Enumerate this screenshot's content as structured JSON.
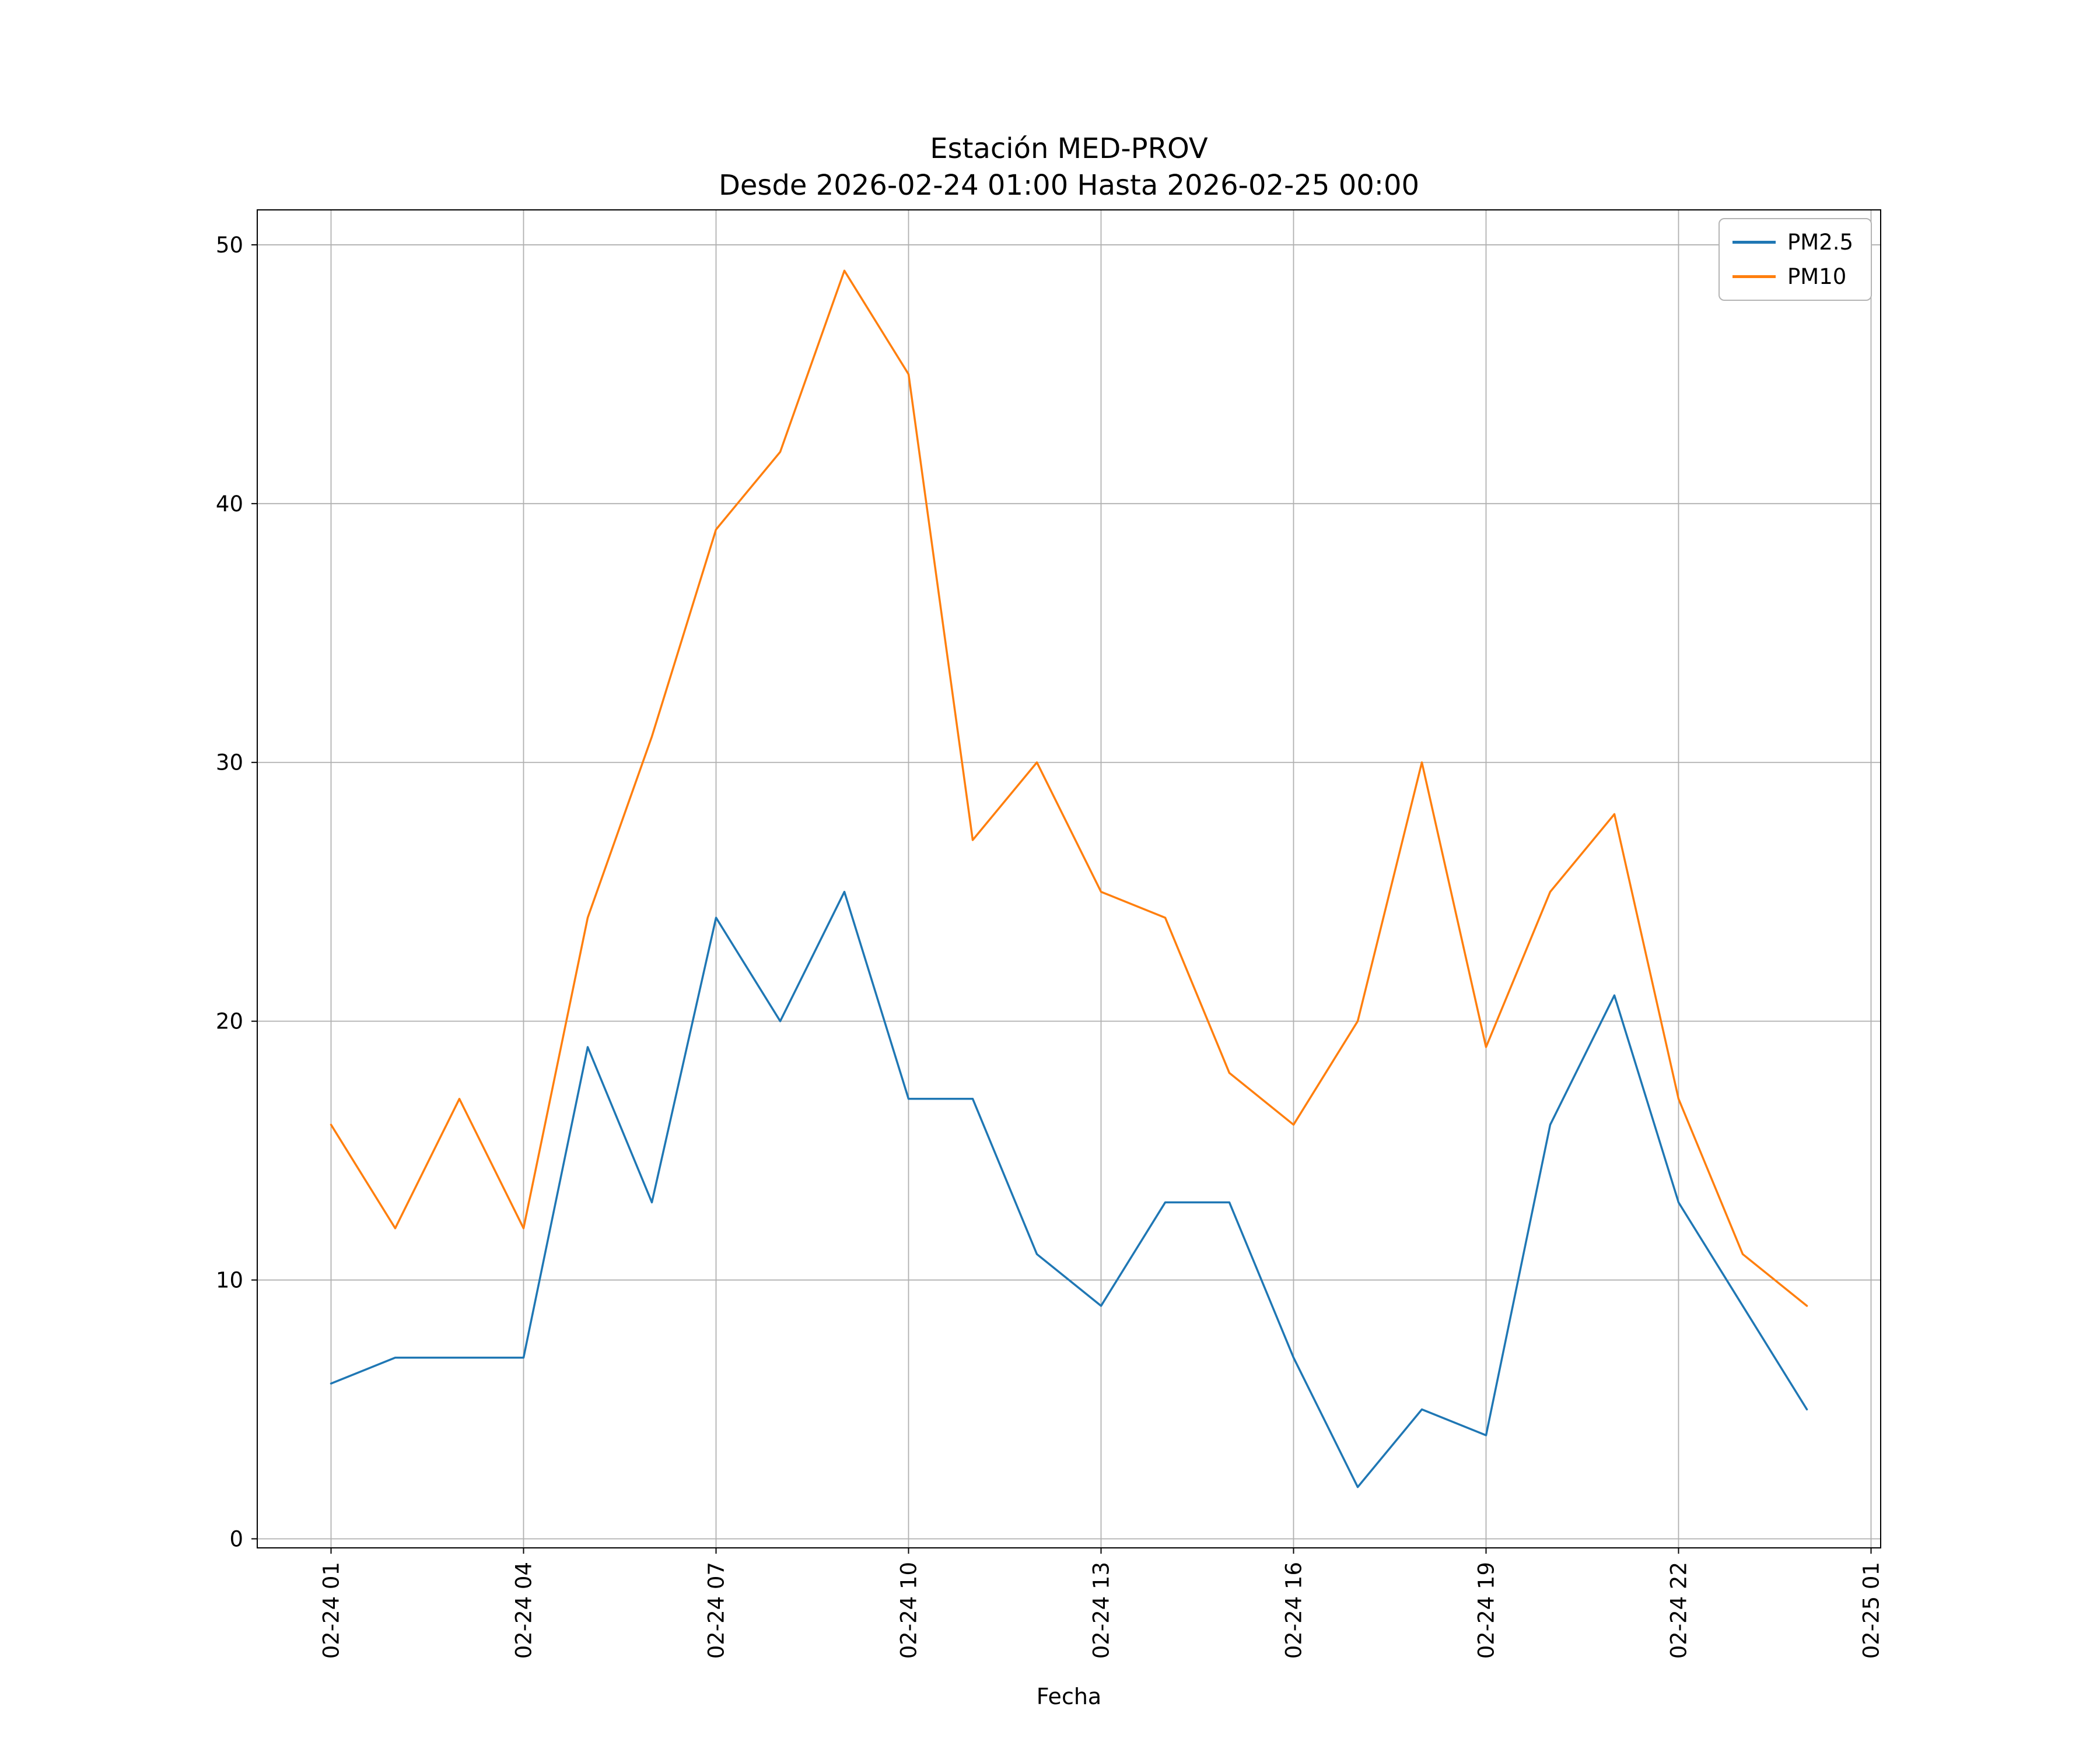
{
  "figure": {
    "background": "#ffffff"
  },
  "chart_data": {
    "type": "line",
    "title": "Estación MED-PROV",
    "subtitle": "Desde 2026-02-24 01:00 Hasta 2026-02-25 00:00",
    "xlabel": "Fecha",
    "ylabel": "",
    "grid": true,
    "legend_position": "upper right",
    "grid_color": "#b0b0b0",
    "axis_color": "#000000",
    "xlim": [
      -0.15,
      25.15
    ],
    "ylim": [
      -0.35,
      51.35
    ],
    "x_hours": [
      1,
      2,
      3,
      4,
      5,
      6,
      7,
      8,
      9,
      10,
      11,
      12,
      13,
      14,
      15,
      16,
      17,
      18,
      19,
      20,
      21,
      22,
      23,
      24
    ],
    "series": [
      {
        "name": "PM2.5",
        "color": "#1f77b4",
        "values": [
          6,
          7,
          7,
          7,
          19,
          13,
          24,
          20,
          25,
          17,
          17,
          11,
          9,
          13,
          13,
          7,
          2,
          5,
          4,
          16,
          21,
          13,
          9,
          5
        ]
      },
      {
        "name": "PM10",
        "color": "#ff7f0e",
        "values": [
          16,
          12,
          17,
          12,
          24,
          31,
          39,
          42,
          49,
          45,
          27,
          30,
          25,
          24,
          18,
          16,
          20,
          30,
          19,
          25,
          28,
          17,
          11,
          9
        ]
      }
    ],
    "xticks": {
      "positions": [
        1,
        4,
        7,
        10,
        13,
        16,
        19,
        22,
        25
      ],
      "labels": [
        "02-24 01",
        "02-24 04",
        "02-24 07",
        "02-24 10",
        "02-24 13",
        "02-24 16",
        "02-24 19",
        "02-24 22",
        "02-25 01"
      ]
    },
    "yticks": {
      "positions": [
        0,
        10,
        20,
        30,
        40,
        50
      ],
      "labels": [
        "0",
        "10",
        "20",
        "30",
        "40",
        "50"
      ]
    }
  }
}
